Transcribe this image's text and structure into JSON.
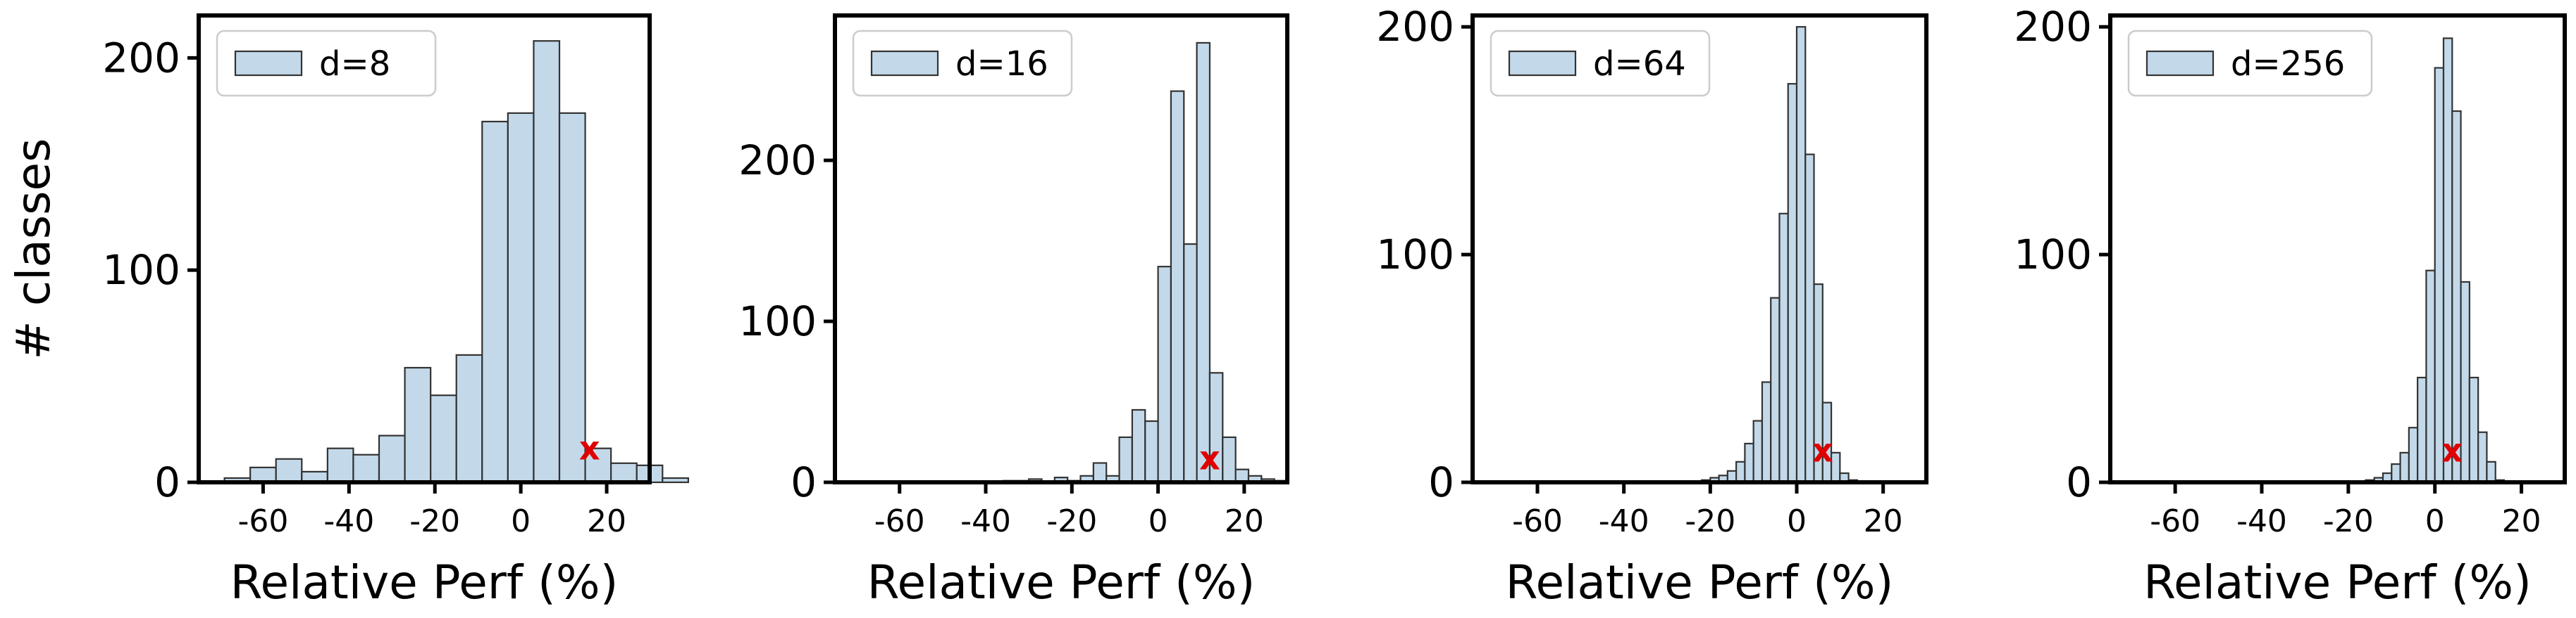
{
  "chart_data": [
    {
      "type": "bar",
      "legend": "d=8",
      "legend_placement": "top-left",
      "xlabel": "Relative Perf (%)",
      "ylabel": "# classes",
      "xlim": [
        -75,
        30
      ],
      "ylim": [
        0,
        220
      ],
      "xticks": [
        -60,
        -40,
        -20,
        0,
        20
      ],
      "yticks": [
        0,
        100,
        200
      ],
      "bin_width": 6,
      "bin_start": -69,
      "values": [
        2,
        7,
        11,
        5,
        16,
        13,
        22,
        54,
        41,
        60,
        170,
        174,
        208,
        174,
        16,
        9,
        8,
        2
      ],
      "marker": {
        "label": "x",
        "x": 16,
        "y": 16
      },
      "bar_color": "#c3d9ea",
      "edge_color": "#333333",
      "marker_color": "#e00000",
      "grid": false
    },
    {
      "type": "bar",
      "legend": "d=16",
      "legend_placement": "top-left",
      "xlabel": "Relative Perf (%)",
      "ylabel": "",
      "xlim": [
        -75,
        30
      ],
      "ylim": [
        0,
        290
      ],
      "xticks": [
        -60,
        -40,
        -20,
        0,
        20
      ],
      "yticks": [
        0,
        100,
        200
      ],
      "bin_width": 3,
      "bin_start": -36,
      "values": [
        1,
        1,
        2,
        0,
        3,
        1,
        4,
        12,
        4,
        28,
        45,
        38,
        134,
        243,
        148,
        273,
        68,
        28,
        8,
        4,
        2,
        1
      ],
      "marker": {
        "label": "x",
        "x": 12,
        "y": 15
      },
      "bar_color": "#c3d9ea",
      "edge_color": "#333333",
      "marker_color": "#e00000",
      "grid": false
    },
    {
      "type": "bar",
      "legend": "d=64",
      "legend_placement": "top-left",
      "xlabel": "Relative Perf (%)",
      "ylabel": "",
      "xlim": [
        -75,
        30
      ],
      "ylim": [
        0,
        205
      ],
      "xticks": [
        -60,
        -40,
        -20,
        0,
        20
      ],
      "yticks": [
        0,
        100,
        200
      ],
      "bin_width": 2,
      "bin_start": -22,
      "values": [
        1,
        2,
        3,
        5,
        9,
        17,
        27,
        44,
        81,
        118,
        175,
        200,
        144,
        87,
        35,
        13,
        4,
        1
      ],
      "marker": {
        "label": "x",
        "x": 6,
        "y": 14
      },
      "bar_color": "#c3d9ea",
      "edge_color": "#333333",
      "marker_color": "#e00000",
      "grid": false
    },
    {
      "type": "bar",
      "legend": "d=256",
      "legend_placement": "top-left",
      "xlabel": "Relative Perf (%)",
      "ylabel": "",
      "xlim": [
        -75,
        30
      ],
      "ylim": [
        0,
        205
      ],
      "xticks": [
        -60,
        -40,
        -20,
        0,
        20
      ],
      "yticks": [
        0,
        100,
        200
      ],
      "bin_width": 2,
      "bin_start": -16,
      "values": [
        1,
        2,
        4,
        8,
        13,
        24,
        46,
        93,
        182,
        195,
        163,
        88,
        46,
        22,
        9,
        1
      ],
      "marker": {
        "label": "x",
        "x": 4,
        "y": 14
      },
      "bar_color": "#c3d9ea",
      "edge_color": "#333333",
      "marker_color": "#e00000",
      "grid": false
    }
  ]
}
